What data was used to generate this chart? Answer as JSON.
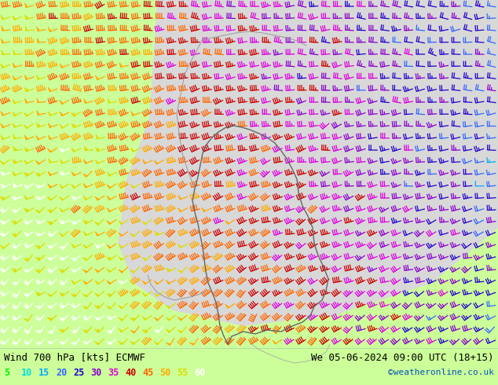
{
  "title_left": "Wind 700 hPa [kts] ECMWF",
  "title_right": "We 05-06-2024 09:00 UTC (18+15)",
  "credit": "©weatheronline.co.uk",
  "legend_values": [
    5,
    10,
    15,
    20,
    25,
    30,
    35,
    40,
    45,
    50,
    55,
    60
  ],
  "legend_colors": [
    "#00ee00",
    "#00dddd",
    "#00aaff",
    "#3366ff",
    "#2200cc",
    "#8800cc",
    "#dd00dd",
    "#cc0000",
    "#ff6600",
    "#ffaa00",
    "#dddd00",
    "#ffffff"
  ],
  "bg_color_land": "#ccff99",
  "bg_color_sea": "#d8d8d8",
  "fig_width": 6.34,
  "fig_height": 4.9,
  "dpi": 100
}
